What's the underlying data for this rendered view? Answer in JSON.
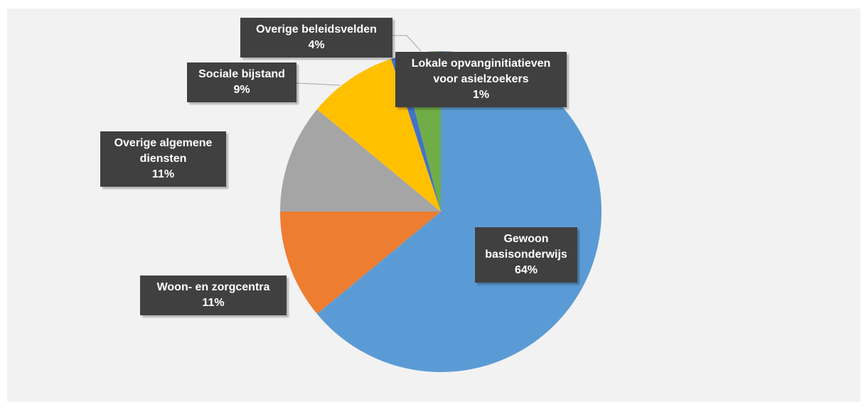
{
  "chart_data": {
    "type": "pie",
    "categories": [
      "Gewoon basisonderwijs",
      "Woon- en zorgcentra",
      "Overige algemene diensten",
      "Sociale bijstand",
      "Lokale opvanginitiatieven voor asielzoekers",
      "Overige beleidsvelden"
    ],
    "values": [
      64,
      11,
      11,
      9,
      1,
      4
    ],
    "value_labels": [
      "64%",
      "11%",
      "11%",
      "9%",
      "1%",
      "4%"
    ],
    "colors": [
      "#5b9bd5",
      "#ed7d31",
      "#a5a5a5",
      "#ffc000",
      "#4472c4",
      "#70ad47"
    ]
  }
}
